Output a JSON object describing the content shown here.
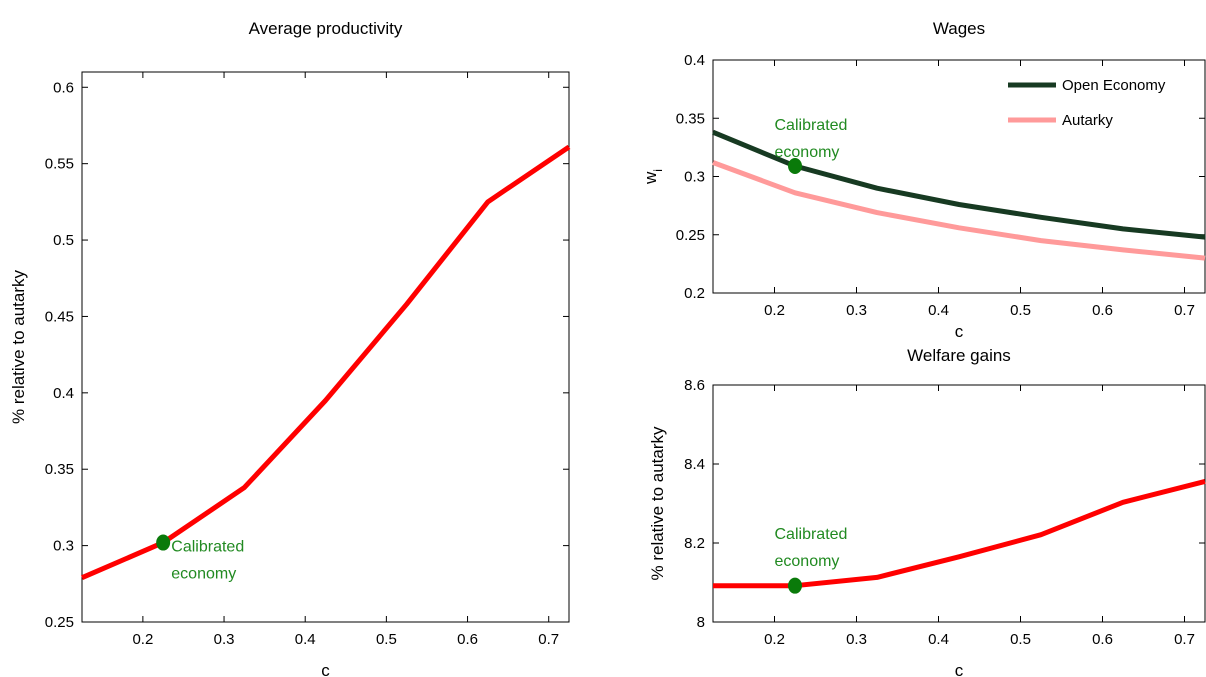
{
  "chart_data": [
    {
      "id": "productivity",
      "type": "line",
      "title": "Average productivity",
      "xlabel": "c",
      "ylabel": "% relative to autarky",
      "xlim": [
        0.125,
        0.725
      ],
      "ylim": [
        0.25,
        0.61
      ],
      "xticks": [
        "0.2",
        "0.3",
        "0.4",
        "0.5",
        "0.6",
        "0.7"
      ],
      "xtick_values": [
        0.2,
        0.3,
        0.4,
        0.5,
        0.6,
        0.7
      ],
      "yticks": [
        "0.25",
        "0.3",
        "0.35",
        "0.4",
        "0.45",
        "0.5",
        "0.55",
        "0.6"
      ],
      "ytick_values": [
        0.25,
        0.3,
        0.35,
        0.4,
        0.45,
        0.5,
        0.55,
        0.6
      ],
      "series": [
        {
          "color": "#ff0000",
          "x": [
            0.125,
            0.225,
            0.325,
            0.425,
            0.525,
            0.625,
            0.725
          ],
          "y": [
            0.279,
            0.302,
            0.338,
            0.395,
            0.458,
            0.525,
            0.561
          ]
        }
      ],
      "marker": {
        "x": 0.225,
        "y": 0.302,
        "color": "#0a7a0a"
      },
      "annotation": {
        "lines": [
          "Calibrated",
          "economy"
        ],
        "x": 0.235,
        "y": 0.296
      }
    },
    {
      "id": "wages",
      "type": "line",
      "title": "Wages",
      "xlabel": "c",
      "ylabel": "w",
      "ylabel_sub": "i",
      "xlim": [
        0.125,
        0.725
      ],
      "ylim": [
        0.2,
        0.4
      ],
      "xticks": [
        "0.2",
        "0.3",
        "0.4",
        "0.5",
        "0.6",
        "0.7"
      ],
      "xtick_values": [
        0.2,
        0.3,
        0.4,
        0.5,
        0.6,
        0.7
      ],
      "yticks": [
        "0.2",
        "0.25",
        "0.3",
        "0.35",
        "0.4"
      ],
      "ytick_values": [
        0.2,
        0.25,
        0.3,
        0.35,
        0.4
      ],
      "legend_position": "top-right",
      "series": [
        {
          "name": "Open Economy",
          "color": "#173a22",
          "x": [
            0.125,
            0.225,
            0.325,
            0.425,
            0.525,
            0.625,
            0.725
          ],
          "y": [
            0.338,
            0.309,
            0.29,
            0.276,
            0.265,
            0.255,
            0.248
          ]
        },
        {
          "name": "Autarky",
          "color": "#ff9a9a",
          "x": [
            0.125,
            0.225,
            0.325,
            0.425,
            0.525,
            0.625,
            0.725
          ],
          "y": [
            0.312,
            0.286,
            0.269,
            0.256,
            0.245,
            0.237,
            0.23
          ]
        }
      ],
      "marker": {
        "x": 0.225,
        "y": 0.309,
        "color": "#0a7a0a"
      },
      "annotation": {
        "lines": [
          "Calibrated",
          "economy"
        ],
        "x": 0.2,
        "y": 0.34
      }
    },
    {
      "id": "welfare",
      "type": "line",
      "title": "Welfare gains",
      "xlabel": "c",
      "ylabel": "% relative to autarky",
      "xlim": [
        0.125,
        0.725
      ],
      "ylim": [
        8.0,
        8.6
      ],
      "xticks": [
        "0.2",
        "0.3",
        "0.4",
        "0.5",
        "0.6",
        "0.7"
      ],
      "xtick_values": [
        0.2,
        0.3,
        0.4,
        0.5,
        0.6,
        0.7
      ],
      "yticks": [
        "8",
        "8.2",
        "8.4",
        "8.6"
      ],
      "ytick_values": [
        8.0,
        8.2,
        8.4,
        8.6
      ],
      "series": [
        {
          "color": "#ff0000",
          "x": [
            0.125,
            0.225,
            0.325,
            0.425,
            0.525,
            0.625,
            0.725
          ],
          "y": [
            8.092,
            8.092,
            8.113,
            8.165,
            8.221,
            8.303,
            8.356
          ]
        }
      ],
      "marker": {
        "x": 0.225,
        "y": 8.092,
        "color": "#0a7a0a"
      },
      "annotation": {
        "lines": [
          "Calibrated",
          "economy"
        ],
        "x": 0.2,
        "y": 8.21
      }
    }
  ]
}
